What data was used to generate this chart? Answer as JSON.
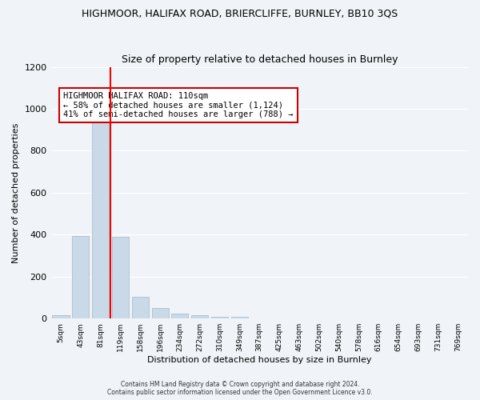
{
  "title": "HIGHMOOR, HALIFAX ROAD, BRIERCLIFFE, BURNLEY, BB10 3QS",
  "subtitle": "Size of property relative to detached houses in Burnley",
  "xlabel": "Distribution of detached houses by size in Burnley",
  "ylabel": "Number of detached properties",
  "bar_values": [
    15,
    395,
    955,
    390,
    105,
    50,
    25,
    15,
    10,
    10,
    0,
    0,
    0,
    0,
    0,
    0,
    0,
    0,
    0,
    0,
    0
  ],
  "categories": [
    "5sqm",
    "43sqm",
    "81sqm",
    "119sqm",
    "158sqm",
    "196sqm",
    "234sqm",
    "272sqm",
    "310sqm",
    "349sqm",
    "387sqm",
    "425sqm",
    "463sqm",
    "502sqm",
    "540sqm",
    "578sqm",
    "616sqm",
    "654sqm",
    "693sqm",
    "731sqm",
    "769sqm"
  ],
  "bar_color": "#c9d9e8",
  "bar_edgecolor": "#a0b8cc",
  "red_line_x": 2.5,
  "ylim": [
    0,
    1200
  ],
  "yticks": [
    0,
    200,
    400,
    600,
    800,
    1000,
    1200
  ],
  "annotation_text": "HIGHMOOR HALIFAX ROAD: 110sqm\n← 58% of detached houses are smaller (1,124)\n41% of semi-detached houses are larger (788) →",
  "annotation_box_color": "#ffffff",
  "annotation_box_edgecolor": "#cc0000",
  "footer": "Contains HM Land Registry data © Crown copyright and database right 2024.\nContains public sector information licensed under the Open Government Licence v3.0.",
  "background_color": "#f0f4f8",
  "plot_background": "#f0f4f8",
  "grid_color": "#ffffff"
}
